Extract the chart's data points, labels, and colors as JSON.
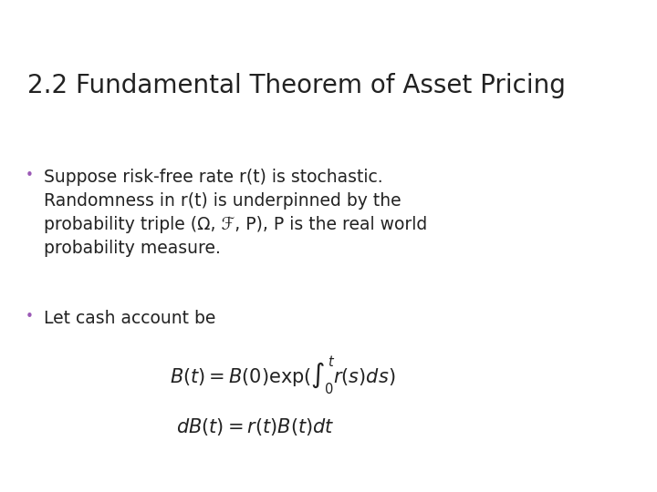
{
  "title": "2.2 Fundamental Theorem of Asset Pricing",
  "title_fontsize": 20,
  "title_color": "#222222",
  "bullet_color": "#9b59b6",
  "text_color": "#222222",
  "background_color": "#ffffff",
  "header_dark_color": "#3d3d52",
  "header_teal_color": "#3a8a8c",
  "header_light_color": "#a8c4c8",
  "header_white_line": "#ffffff",
  "body_fontsize": 13.5,
  "math_fontsize": 15,
  "bullet1_lines": [
    "Suppose risk-free rate r(t) is stochastic.",
    "Randomness in r(t) is underpinned by the",
    "probability triple (Ω, ℱ, P), P is the real world",
    "probability measure."
  ],
  "bullet2_text": "Let cash account be"
}
